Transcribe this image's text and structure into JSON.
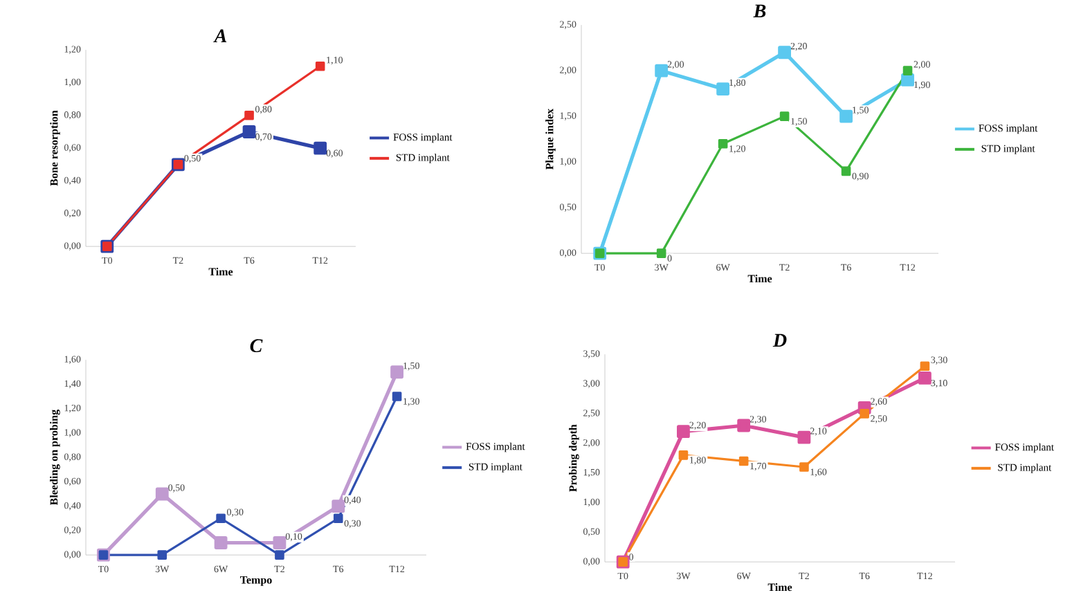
{
  "chart_data": [
    {
      "type": "line",
      "title": "A",
      "xlabel": "Time",
      "ylabel": "Bone resorption",
      "categories": [
        "T0",
        "T2",
        "T6",
        "T12"
      ],
      "ylim": [
        0,
        1.2
      ],
      "yticks": [
        {
          "value": 0,
          "label": "0,00"
        },
        {
          "value": 0.2,
          "label": "0,20"
        },
        {
          "value": 0.4,
          "label": "0,40"
        },
        {
          "value": 0.6,
          "label": "0,60"
        },
        {
          "value": 0.8,
          "label": "0,80"
        },
        {
          "value": 1.0,
          "label": "1,00"
        },
        {
          "value": 1.2,
          "label": "1,20"
        }
      ],
      "legend": "right",
      "marker": "square",
      "series": [
        {
          "name": "FOSS implant",
          "color": "#2e44a8",
          "values": [
            0,
            0.5,
            0.7,
            0.6
          ],
          "value_labels": [
            null,
            null,
            "0,70",
            "0,60"
          ]
        },
        {
          "name": "STD implant",
          "color": "#e8302a",
          "values": [
            0,
            0.5,
            0.8,
            1.1
          ],
          "value_labels": [
            null,
            "0,50",
            "0,80",
            "1,10"
          ]
        }
      ]
    },
    {
      "type": "line",
      "title": "B",
      "xlabel": "Time",
      "ylabel": "Plaque index",
      "categories": [
        "T0",
        "3W",
        "6W",
        "T2",
        "T6",
        "T12"
      ],
      "ylim": [
        0,
        2.5
      ],
      "yticks": [
        {
          "value": 0,
          "label": "0,00"
        },
        {
          "value": 0.5,
          "label": "0,50"
        },
        {
          "value": 1.0,
          "label": "1,00"
        },
        {
          "value": 1.5,
          "label": "1,50"
        },
        {
          "value": 2.0,
          "label": "2,00"
        },
        {
          "value": 2.5,
          "label": "2,50"
        }
      ],
      "legend": "right",
      "marker": "square",
      "series": [
        {
          "name": "FOSS implant",
          "color": "#5bc8ef",
          "values": [
            0,
            2.0,
            1.8,
            2.2,
            1.5,
            1.9
          ],
          "value_labels": [
            null,
            "2,00",
            "1,80",
            "2,20",
            "1,50",
            "1,90"
          ]
        },
        {
          "name": "STD implant",
          "color": "#3cb43c",
          "values": [
            0,
            0,
            1.2,
            1.5,
            0.9,
            2.0
          ],
          "value_labels": [
            null,
            "0",
            "1,20",
            "1,50",
            "0,90",
            "2,00"
          ]
        }
      ]
    },
    {
      "type": "line",
      "title": "C",
      "xlabel": "Tempo",
      "ylabel": "Bleeding on probing",
      "categories": [
        "T0",
        "3W",
        "6W",
        "T2",
        "T6",
        "T12"
      ],
      "ylim": [
        0,
        1.6
      ],
      "yticks": [
        {
          "value": 0,
          "label": "0,00"
        },
        {
          "value": 0.2,
          "label": "0,20"
        },
        {
          "value": 0.4,
          "label": "0,40"
        },
        {
          "value": 0.6,
          "label": "0,60"
        },
        {
          "value": 0.8,
          "label": "0,80"
        },
        {
          "value": 1.0,
          "label": "1,00"
        },
        {
          "value": 1.2,
          "label": "1,20"
        },
        {
          "value": 1.4,
          "label": "1,40"
        },
        {
          "value": 1.6,
          "label": "1,60"
        }
      ],
      "legend": "right",
      "marker": "square",
      "series": [
        {
          "name": "FOSS implant",
          "color": "#c09ad0",
          "values": [
            0,
            0.5,
            0.1,
            0.1,
            0.4,
            1.5
          ],
          "value_labels": [
            null,
            "0,50",
            null,
            "0,10",
            "0,40",
            "1,50"
          ]
        },
        {
          "name": "STD implant",
          "color": "#3050b0",
          "values": [
            0,
            0,
            0.3,
            0,
            0.3,
            1.3
          ],
          "value_labels": [
            null,
            null,
            "0,30",
            null,
            "0,30",
            "1,30"
          ]
        }
      ]
    },
    {
      "type": "line",
      "title": "D",
      "xlabel": "Time",
      "ylabel": "Probing depth",
      "categories": [
        "T0",
        "3W",
        "6W",
        "T2",
        "T6",
        "T12"
      ],
      "ylim": [
        0,
        3.5
      ],
      "yticks": [
        {
          "value": 0,
          "label": "0,00"
        },
        {
          "value": 0.5,
          "label": "0,50"
        },
        {
          "value": 1.0,
          "label": "1,00"
        },
        {
          "value": 1.5,
          "label": "1,50"
        },
        {
          "value": 2.0,
          "label": "2,00"
        },
        {
          "value": 2.5,
          "label": "2,50"
        },
        {
          "value": 3.0,
          "label": "3,00"
        },
        {
          "value": 3.5,
          "label": "3,50"
        }
      ],
      "legend": "right",
      "marker": "square",
      "series": [
        {
          "name": "FOSS implant",
          "color": "#d9509a",
          "values": [
            0,
            2.2,
            2.3,
            2.1,
            2.6,
            3.1
          ],
          "value_labels": [
            null,
            "2,20",
            "2,30",
            "2,10",
            "2,60",
            "3,10"
          ]
        },
        {
          "name": "STD implant",
          "color": "#f5841f",
          "values": [
            0,
            1.8,
            1.7,
            1.6,
            2.5,
            3.3
          ],
          "value_labels": [
            "0",
            "1,80",
            "1,70",
            "1,60",
            "2,50",
            "3,30"
          ]
        }
      ]
    }
  ]
}
